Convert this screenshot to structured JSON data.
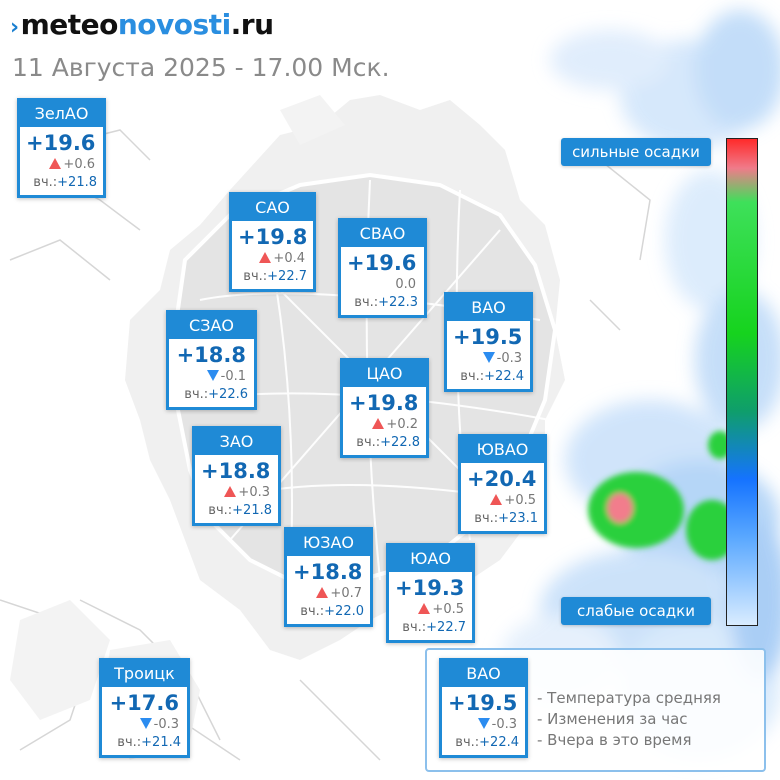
{
  "header": {
    "logo_mark": "›",
    "logo_part1": "meteo",
    "logo_part2": "novosti",
    "logo_part3": ".ru",
    "datetime": "11 Августа 2025 - 17.00 Мск."
  },
  "precip_scale": {
    "top_label": "сильные осадки",
    "bottom_label": "слабые осадки",
    "colors": [
      "#ff2a2a",
      "#f07b8a",
      "#16d31e",
      "#1573ff",
      "#d9ecff"
    ]
  },
  "districts": [
    {
      "name": "ЗелАО",
      "temp": "+19.6",
      "trend": "up",
      "change": "+0.6",
      "yesterday_label": "вч.:",
      "yesterday": "+21.8"
    },
    {
      "name": "САО",
      "temp": "+19.8",
      "trend": "up",
      "change": "+0.4",
      "yesterday_label": "вч.:",
      "yesterday": "+22.7"
    },
    {
      "name": "СВАО",
      "temp": "+19.6",
      "trend": "none",
      "change": "0.0",
      "yesterday_label": "вч.:",
      "yesterday": "+22.3"
    },
    {
      "name": "ВАО",
      "temp": "+19.5",
      "trend": "down",
      "change": "-0.3",
      "yesterday_label": "вч.:",
      "yesterday": "+22.4"
    },
    {
      "name": "СЗАО",
      "temp": "+18.8",
      "trend": "down",
      "change": "-0.1",
      "yesterday_label": "вч.:",
      "yesterday": "+22.6"
    },
    {
      "name": "ЦАО",
      "temp": "+19.8",
      "trend": "up",
      "change": "+0.2",
      "yesterday_label": "вч.:",
      "yesterday": "+22.8"
    },
    {
      "name": "ЗАО",
      "temp": "+18.8",
      "trend": "up",
      "change": "+0.3",
      "yesterday_label": "вч.:",
      "yesterday": "+21.8"
    },
    {
      "name": "ЮВАО",
      "temp": "+20.4",
      "trend": "up",
      "change": "+0.5",
      "yesterday_label": "вч.:",
      "yesterday": "+23.1"
    },
    {
      "name": "ЮЗАО",
      "temp": "+18.8",
      "trend": "up",
      "change": "+0.7",
      "yesterday_label": "вч.:",
      "yesterday": "+22.0"
    },
    {
      "name": "ЮАО",
      "temp": "+19.3",
      "trend": "up",
      "change": "+0.5",
      "yesterday_label": "вч.:",
      "yesterday": "+22.7"
    },
    {
      "name": "Троицк",
      "temp": "+17.6",
      "trend": "down",
      "change": "-0.3",
      "yesterday_label": "вч.:",
      "yesterday": "+21.4"
    }
  ],
  "legend": {
    "sample": {
      "name": "ВАО",
      "temp": "+19.5",
      "trend": "down",
      "change": "-0.3",
      "yesterday_label": "вч.:",
      "yesterday": "+22.4"
    },
    "items": [
      "- Температура средняя",
      "- Изменения за час",
      "- Вчера в это время"
    ]
  },
  "colors": {
    "accent": "#1f8ad6",
    "temp_text": "#1268b3",
    "up_arrow": "#ef5656",
    "down_arrow": "#2b8cf0"
  }
}
